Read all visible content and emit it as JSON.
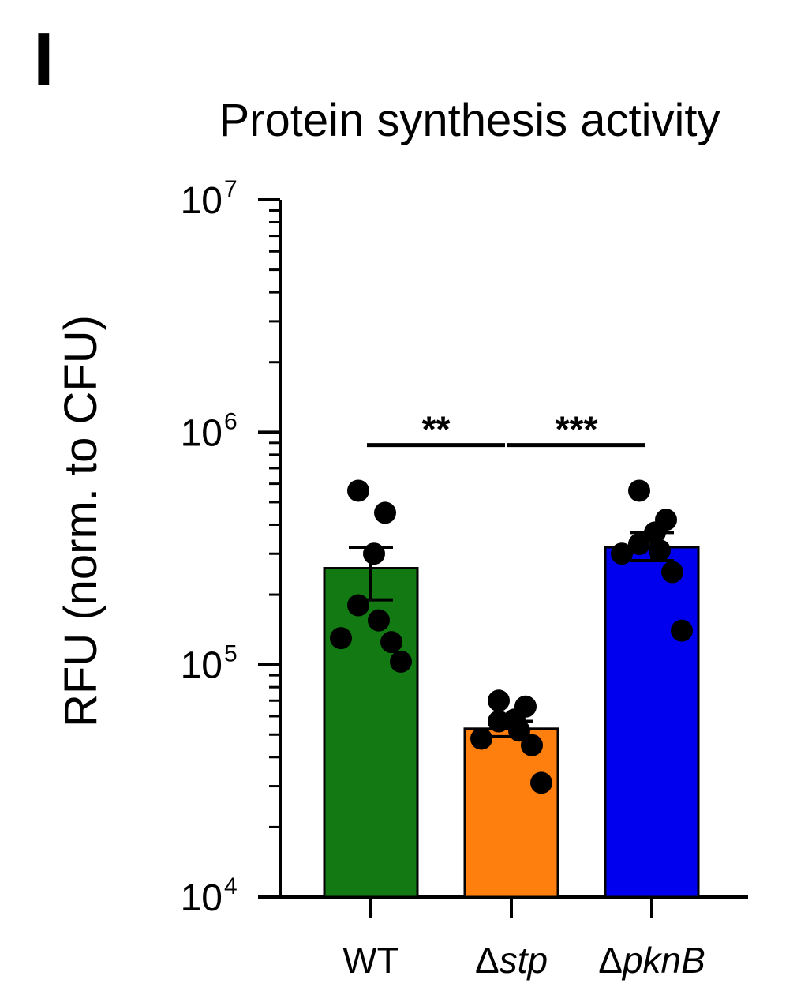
{
  "panel_label": "I",
  "chart_data": {
    "type": "bar",
    "title": "Protein synthesis activity",
    "ylabel": "RFU  (norm. to CFU)",
    "xlabel": "",
    "yscale": "log",
    "ylim": [
      10000,
      10000000
    ],
    "yticks": [
      {
        "base": "10",
        "exp": "4",
        "value": 10000
      },
      {
        "base": "10",
        "exp": "5",
        "value": 100000
      },
      {
        "base": "10",
        "exp": "6",
        "value": 1000000
      },
      {
        "base": "10",
        "exp": "7",
        "value": 10000000
      }
    ],
    "categories": [
      {
        "prefix": "",
        "name": "WT",
        "italic": false
      },
      {
        "prefix": "Δ",
        "name": "stp",
        "italic": true
      },
      {
        "prefix": "Δ",
        "name": "pknB",
        "italic": true
      }
    ],
    "bars": [
      {
        "value": 260000,
        "sem_upper": 320000,
        "sem_lower": 190000,
        "color": "#137a13",
        "points": [
          560000,
          450000,
          300000,
          180000,
          155000,
          130000,
          125000,
          103000
        ]
      },
      {
        "value": 53000,
        "sem_upper": 57000,
        "sem_lower": 49000,
        "color": "#ff7f0e",
        "points": [
          70000,
          66000,
          58000,
          57000,
          52000,
          48000,
          45000,
          31000
        ]
      },
      {
        "value": 320000,
        "sem_upper": 370000,
        "sem_lower": 280000,
        "color": "#0000ee",
        "points": [
          560000,
          420000,
          370000,
          330000,
          310000,
          300000,
          250000,
          140000
        ]
      }
    ],
    "significance": [
      {
        "from": 0,
        "to": 1,
        "label": "**",
        "y": 880000
      },
      {
        "from": 1,
        "to": 2,
        "label": "***",
        "y": 880000
      }
    ]
  }
}
